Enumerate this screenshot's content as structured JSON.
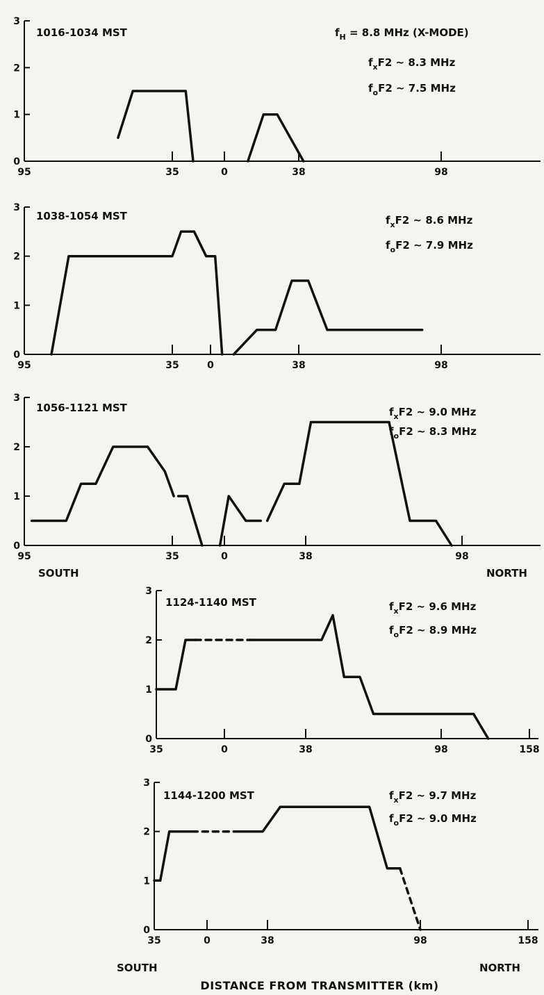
{
  "figure": {
    "xlabel": "DISTANCE FROM TRANSMITTER (km)",
    "south_label": "SOUTH",
    "north_label": "NORTH"
  },
  "chart_data": [
    {
      "type": "line",
      "title": "1016-1034 MST",
      "annotations": [
        "f_H = 8.8 MHz (X-MODE)",
        "f_xF2 ~ 8.3 MHz",
        "f_oF2 ~ 7.5 MHz"
      ],
      "xlim": [
        -95,
        158
      ],
      "ylim": [
        0,
        3
      ],
      "x_ticks": [
        -95,
        -35,
        0,
        38,
        98
      ],
      "x_tick_labels": [
        "95",
        "35",
        "0",
        "38",
        "98"
      ],
      "y_ticks": [
        0,
        1,
        2,
        3
      ],
      "series": [
        {
          "x": [
            -57,
            -51,
            -26,
            -21
          ],
          "y": [
            0.5,
            1.5,
            1.5,
            0
          ]
        },
        {
          "x": [
            12,
            20,
            27,
            40
          ],
          "y": [
            0,
            1,
            1,
            0
          ]
        }
      ],
      "dashed": []
    },
    {
      "type": "line",
      "title": "1038-1054 MST",
      "annotations": [
        "f_xF2 ~ 8.6 MHz",
        "f_oF2 ~ 7.9 MHz"
      ],
      "xlim": [
        -95,
        158
      ],
      "ylim": [
        0,
        3
      ],
      "x_ticks": [
        -95,
        -35,
        0,
        38,
        98
      ],
      "x_tick_labels": [
        "95",
        "35",
        "0",
        "38",
        "98"
      ],
      "y_ticks": [
        0,
        1,
        2,
        3
      ],
      "series": [
        {
          "x": [
            -84,
            -77,
            -35,
            -27,
            -15,
            -4,
            2,
            5
          ],
          "y": [
            0,
            2,
            2,
            2.5,
            2.5,
            2,
            2,
            0
          ]
        },
        {
          "x": [
            10,
            20,
            28,
            35,
            42,
            50,
            90
          ],
          "y": [
            0,
            0.5,
            0.5,
            1.5,
            1.5,
            0.5,
            0.5
          ]
        }
      ],
      "dashed": []
    },
    {
      "type": "line",
      "title": "1056-1121 MST",
      "annotations": [
        "f_xF2 ~ 9.0 MHz",
        "f_oF2 ~ 8.3 MHz"
      ],
      "xlim": [
        -95,
        158
      ],
      "ylim": [
        0,
        3
      ],
      "x_ticks": [
        -95,
        -35,
        0,
        38,
        98
      ],
      "x_tick_labels": [
        "95",
        "35",
        "0",
        "38",
        "98"
      ],
      "y_ticks": [
        0,
        1,
        2,
        3
      ],
      "series": [
        {
          "x": [
            -92,
            -78,
            -72,
            -66,
            -59,
            -45,
            -38,
            -34
          ],
          "y": [
            0.5,
            0.5,
            1.25,
            1.25,
            2,
            2,
            1.5,
            1
          ]
        },
        {
          "x": [
            -31,
            -25,
            -15
          ],
          "y": [
            1,
            1,
            0
          ]
        },
        {
          "x": [
            -3,
            2,
            10,
            17
          ],
          "y": [
            0,
            1,
            0.5,
            0.5
          ]
        },
        {
          "x": [
            20,
            28,
            35,
            40,
            70,
            78,
            88,
            94
          ],
          "y": [
            0.5,
            1.25,
            1.25,
            2.5,
            2.5,
            0.5,
            0.5,
            0
          ]
        }
      ],
      "dashed": []
    },
    {
      "type": "line",
      "title": "1124-1140 MST",
      "annotations": [
        "f_xF2 ~ 9.6 MHz",
        "f_oF2 ~ 8.9 MHz"
      ],
      "xlim": [
        -35,
        158
      ],
      "ylim": [
        0,
        3
      ],
      "x_ticks": [
        -35,
        0,
        38,
        98,
        158
      ],
      "x_tick_labels": [
        "35",
        "0",
        "38",
        "98",
        "158"
      ],
      "y_ticks": [
        0,
        1,
        2,
        3
      ],
      "series": [
        {
          "x": [
            -35,
            -25,
            -20,
            -15
          ],
          "y": [
            1,
            1,
            2,
            2
          ]
        },
        {
          "x": [
            -15,
            12
          ],
          "y": [
            2,
            2
          ]
        },
        {
          "x": [
            12,
            45,
            50,
            55,
            62,
            68,
            75,
            120,
            130
          ],
          "y": [
            2,
            2,
            2.5,
            1.25,
            1.25,
            0.5,
            0.5,
            0.5,
            0
          ]
        }
      ],
      "dashed": [
        {
          "x": [
            -15,
            12
          ],
          "y": [
            2,
            2
          ]
        }
      ]
    },
    {
      "type": "line",
      "title": "1144-1200 MST",
      "annotations": [
        "f_xF2 ~ 9.7 MHz",
        "f_oF2 ~ 9.0 MHz"
      ],
      "xlim": [
        -35,
        158
      ],
      "ylim": [
        0,
        3
      ],
      "x_ticks": [
        -35,
        0,
        38,
        98,
        158
      ],
      "x_tick_labels": [
        "35",
        "0",
        "38",
        "98",
        "158"
      ],
      "y_ticks": [
        0,
        1,
        2,
        3
      ],
      "series": [
        {
          "x": [
            -35,
            -31,
            -25,
            -10
          ],
          "y": [
            1,
            1,
            2,
            2
          ]
        },
        {
          "x": [
            -10,
            18
          ],
          "y": [
            2,
            2
          ]
        },
        {
          "x": [
            18,
            35,
            43,
            78,
            85,
            90
          ],
          "y": [
            2,
            2,
            2.5,
            2.5,
            1.25,
            1.25
          ]
        },
        {
          "x": [
            90,
            98
          ],
          "y": [
            1.25,
            0
          ]
        }
      ],
      "dashed": [
        {
          "x": [
            -10,
            18
          ],
          "y": [
            2,
            2
          ]
        },
        {
          "x": [
            90,
            98
          ],
          "y": [
            1.25,
            0
          ]
        }
      ]
    }
  ]
}
